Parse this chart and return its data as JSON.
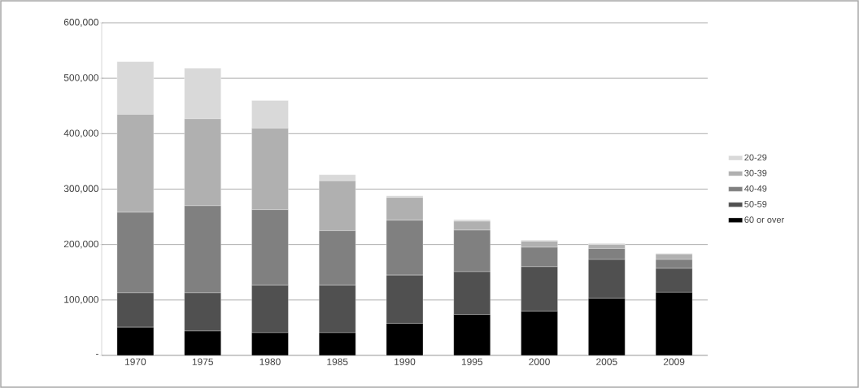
{
  "chart_data": {
    "type": "bar",
    "stacked": true,
    "categories": [
      "1970",
      "1975",
      "1980",
      "1985",
      "1990",
      "1995",
      "2000",
      "2005",
      "2009"
    ],
    "series": [
      {
        "name": "60 or over",
        "color": "#000000",
        "values": [
          51000,
          44000,
          41000,
          41000,
          58000,
          74000,
          80000,
          103000,
          114000
        ]
      },
      {
        "name": "50-59",
        "color": "#505050",
        "values": [
          62000,
          69000,
          86000,
          86000,
          87000,
          77000,
          80000,
          70000,
          43000
        ]
      },
      {
        "name": "40-49",
        "color": "#808080",
        "values": [
          145000,
          157000,
          136000,
          98000,
          99000,
          75000,
          35000,
          20000,
          16000
        ]
      },
      {
        "name": "30-39",
        "color": "#b0b0b0",
        "values": [
          177000,
          157000,
          147000,
          90000,
          41000,
          16000,
          11000,
          7000,
          10000
        ]
      },
      {
        "name": "20-29",
        "color": "#d9d9d9",
        "values": [
          95000,
          91000,
          50000,
          11000,
          3000,
          3000,
          2000,
          2000,
          1000
        ]
      }
    ],
    "ylim": [
      0,
      600000
    ],
    "yticks": [
      {
        "value": 0,
        "label": "-"
      },
      {
        "value": 100000,
        "label": "100,000"
      },
      {
        "value": 200000,
        "label": "200,000"
      },
      {
        "value": 300000,
        "label": "300,000"
      },
      {
        "value": 400000,
        "label": "400,000"
      },
      {
        "value": 500000,
        "label": "500,000"
      },
      {
        "value": 600000,
        "label": "600,000"
      }
    ],
    "grid": "y",
    "legend": "right"
  }
}
